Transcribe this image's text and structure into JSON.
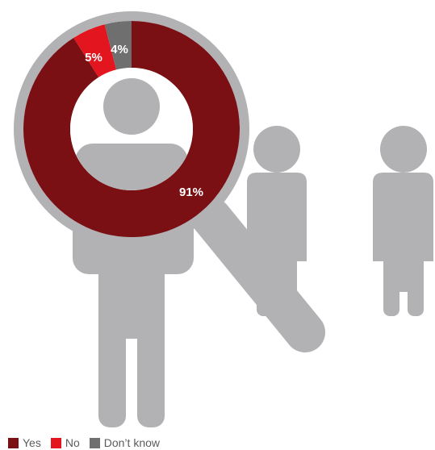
{
  "chart_data": {
    "type": "pie",
    "categories": [
      "Yes",
      "No",
      "Don't know"
    ],
    "values": [
      91,
      5,
      4
    ],
    "labels": [
      "91%",
      "5%",
      "4%"
    ],
    "colors": [
      "#7a0f14",
      "#e3151f",
      "#6f6f6f"
    ],
    "legend": "bottom-left"
  },
  "legend": {
    "items": [
      {
        "label": "Yes",
        "color": "#7a0f14"
      },
      {
        "label": "No",
        "color": "#e3151f"
      },
      {
        "label": "Don’t know",
        "color": "#6f6f6f"
      }
    ]
  },
  "illustration": {
    "figure_color": "#b2b2b4",
    "icons": [
      "person-icon",
      "person-icon",
      "person-icon",
      "magnifying-glass-icon"
    ]
  }
}
